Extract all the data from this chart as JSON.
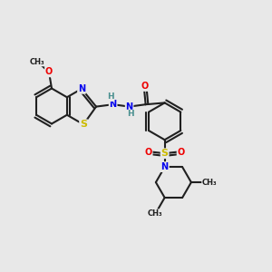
{
  "bg_color": "#e8e8e8",
  "atom_colors": {
    "C": "#202020",
    "N": "#0000ee",
    "O": "#ee0000",
    "S_thiazole": "#ccbb00",
    "S_sulfonyl": "#ccbb00",
    "H": "#4a9090"
  },
  "bond_color": "#202020",
  "bond_width": 1.5,
  "figsize": [
    3.0,
    3.0
  ],
  "dpi": 100,
  "xlim": [
    0,
    10
  ],
  "ylim": [
    0,
    10
  ]
}
